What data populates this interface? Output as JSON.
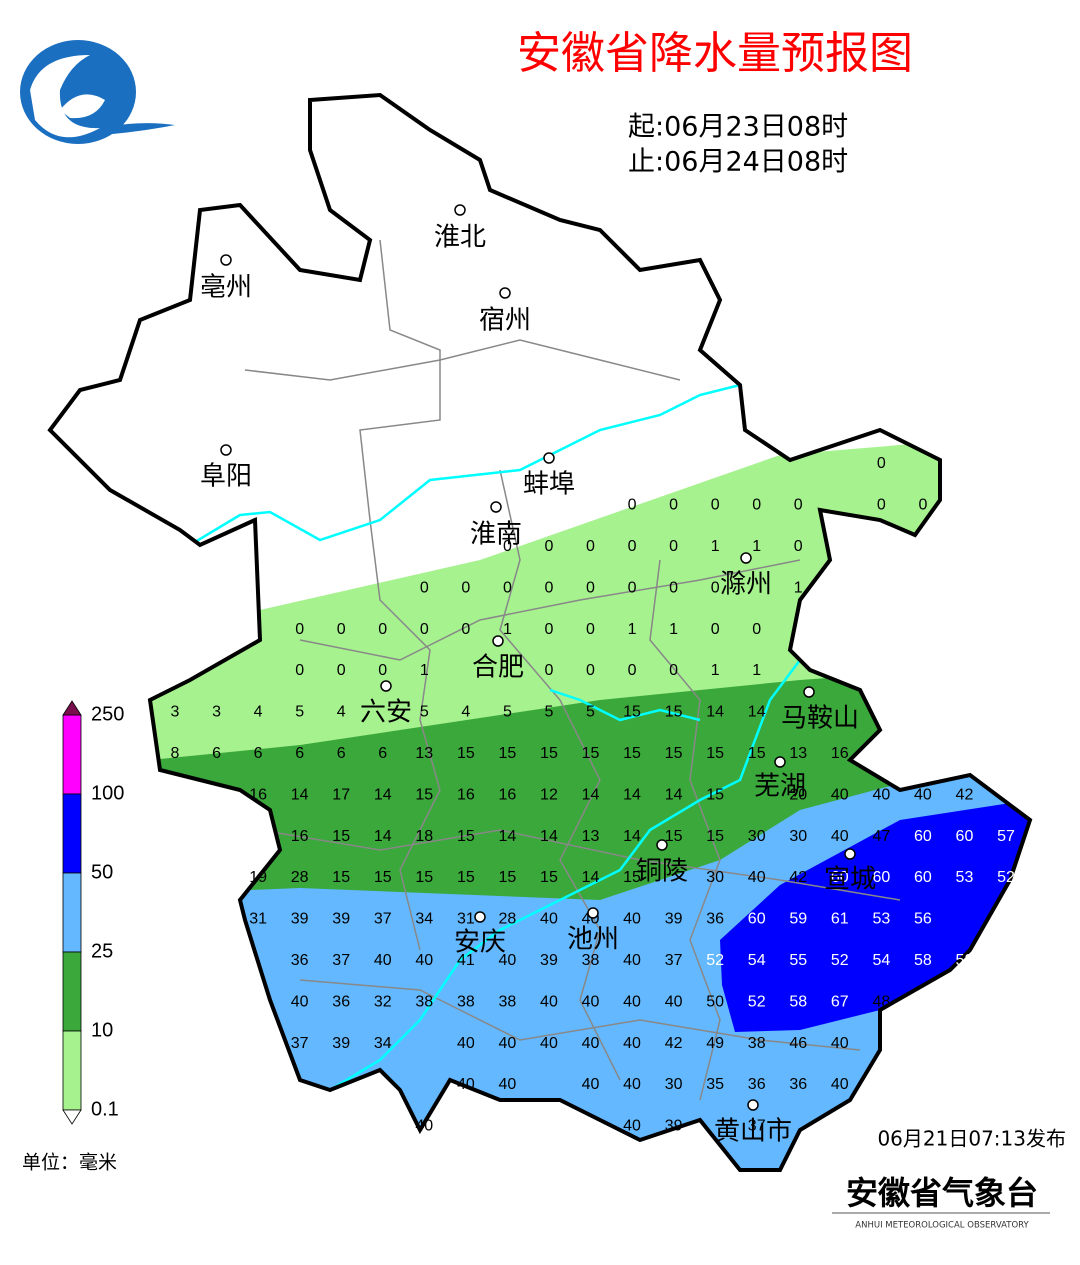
{
  "title": "安徽省降水量预报图",
  "start": "起:06月23日08时",
  "end": "止:06月24日08时",
  "cities": [
    "淮北",
    "亳州",
    "宿州",
    "阜阳",
    "蚌埠",
    "淮南",
    "滁州",
    "合肥",
    "六安",
    "马鞍山",
    "芜湖",
    "铜陵",
    "宣城",
    "安庆",
    "池州",
    "黄山市"
  ],
  "grid": {
    "rows": [
      [
        null,
        null,
        null,
        null,
        null,
        null,
        null,
        null,
        null,
        null,
        null,
        null,
        null,
        null,
        null,
        null,
        null,
        0,
        null,
        null,
        null
      ],
      [
        null,
        null,
        null,
        null,
        null,
        null,
        null,
        null,
        null,
        null,
        null,
        0,
        0,
        0,
        0,
        0,
        null,
        0,
        0,
        null,
        null
      ],
      [
        null,
        null,
        null,
        null,
        null,
        null,
        null,
        null,
        0,
        0,
        0,
        0,
        0,
        1,
        1,
        0,
        null,
        null,
        null,
        null,
        null
      ],
      [
        null,
        null,
        null,
        null,
        null,
        null,
        0,
        0,
        0,
        0,
        0,
        0,
        0,
        0,
        null,
        1,
        null,
        null,
        null,
        null,
        null
      ],
      [
        null,
        null,
        null,
        0,
        0,
        0,
        0,
        0,
        1,
        0,
        0,
        1,
        1,
        0,
        0,
        null,
        null,
        null,
        null,
        null,
        null
      ],
      [
        null,
        null,
        null,
        0,
        0,
        0,
        1,
        null,
        null,
        0,
        0,
        0,
        0,
        1,
        1,
        null,
        null,
        null,
        null,
        null,
        null
      ],
      [
        3,
        3,
        4,
        5,
        4,
        null,
        5,
        4,
        5,
        5,
        5,
        15,
        15,
        14,
        14,
        null,
        null,
        null,
        null,
        null,
        null
      ],
      [
        8,
        6,
        6,
        6,
        6,
        6,
        13,
        15,
        15,
        15,
        15,
        15,
        15,
        15,
        15,
        13,
        16,
        null,
        null,
        null,
        null
      ],
      [
        null,
        null,
        16,
        14,
        17,
        14,
        15,
        16,
        16,
        12,
        14,
        14,
        14,
        15,
        null,
        20,
        40,
        40,
        40,
        42,
        null
      ],
      [
        null,
        null,
        null,
        16,
        15,
        14,
        18,
        15,
        14,
        14,
        13,
        14,
        15,
        15,
        30,
        30,
        40,
        47,
        60,
        60,
        57
      ],
      [
        null,
        null,
        19,
        28,
        15,
        15,
        15,
        15,
        15,
        15,
        14,
        15,
        null,
        30,
        40,
        42,
        60,
        60,
        60,
        53,
        52
      ],
      [
        null,
        null,
        31,
        39,
        39,
        37,
        34,
        31,
        28,
        40,
        40,
        40,
        39,
        36,
        60,
        59,
        61,
        53,
        56,
        null,
        null
      ],
      [
        null,
        null,
        null,
        36,
        37,
        40,
        40,
        41,
        40,
        39,
        38,
        40,
        37,
        52,
        54,
        55,
        52,
        54,
        58,
        58,
        null
      ],
      [
        null,
        null,
        null,
        40,
        36,
        32,
        38,
        38,
        38,
        40,
        40,
        40,
        40,
        50,
        52,
        58,
        67,
        48,
        null,
        null,
        null
      ],
      [
        null,
        null,
        null,
        37,
        39,
        34,
        null,
        40,
        40,
        40,
        40,
        40,
        42,
        49,
        38,
        46,
        40,
        null,
        null,
        null,
        null
      ],
      [
        null,
        null,
        null,
        null,
        null,
        null,
        null,
        40,
        40,
        null,
        40,
        40,
        30,
        35,
        36,
        36,
        40,
        null,
        null,
        null,
        null
      ],
      [
        null,
        null,
        null,
        null,
        null,
        null,
        40,
        null,
        null,
        null,
        null,
        40,
        39,
        null,
        37,
        null,
        null,
        null,
        null,
        null,
        null
      ]
    ]
  },
  "legend": {
    "levels": [
      250,
      100,
      50,
      25,
      10,
      0.1
    ],
    "colors": [
      "#ff00ff",
      "#0000ff",
      "#63b8ff",
      "#3ba83b",
      "#a6f28f"
    ],
    "unit": "单位：毫米"
  },
  "issued": "06月21日07:13发布",
  "agency": "安徽省气象台",
  "agency_en": "ANHUI METEOROLOGICAL OBSERVATORY"
}
